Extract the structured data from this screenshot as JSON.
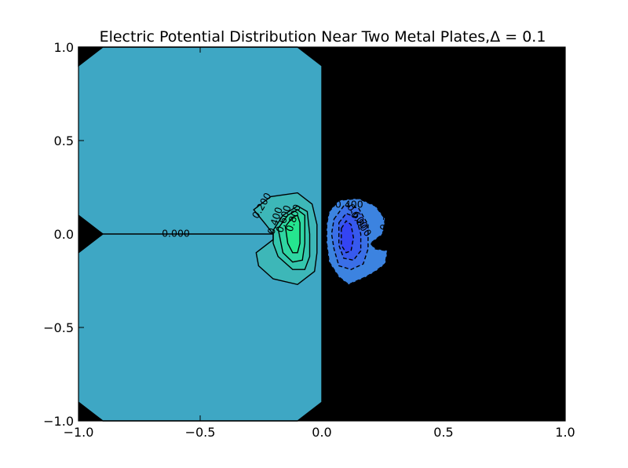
{
  "chart_data": {
    "type": "contour",
    "title": "Electric Potential Distribution Near Two Metal Plates,Δ = 0.1",
    "xlabel": "",
    "ylabel": "",
    "xlim": [
      -1.0,
      1.0
    ],
    "ylim": [
      -1.0,
      1.0
    ],
    "x_ticks": [
      -1.0,
      -0.5,
      0.0,
      0.5,
      1.0
    ],
    "x_tick_labels": [
      "−1.0",
      "−0.5",
      "0.0",
      "0.5",
      "1.0"
    ],
    "y_ticks": [
      -1.0,
      -0.5,
      0.0,
      0.5,
      1.0
    ],
    "y_tick_labels": [
      "−1.0",
      "−0.5",
      "0.0",
      "0.5",
      "1.0"
    ],
    "grid": false,
    "colors": {
      "background_region": "#4196d6",
      "left_plate_region": "#3ea7c4",
      "level_0_2": "#3db7b8",
      "level_0_4": "#34c6ad",
      "level_0_6": "#2fd6a2",
      "level_0_8": "#25e68f",
      "neg_0_2": "#3c83e0",
      "neg_0_4": "#3a6fe7",
      "neg_0_6": "#3759ee",
      "neg_0_8": "#3444f4"
    },
    "fill_regions": [
      {
        "name": "background",
        "level": "background",
        "points": [
          [
            -1,
            -1
          ],
          [
            1,
            -1
          ],
          [
            1,
            1
          ],
          [
            -1,
            1
          ]
        ]
      },
      {
        "name": "left-plate-region",
        "level": "left_plate_region",
        "points": [
          [
            -0.9,
            1.0
          ],
          [
            -0.1,
            1.0
          ],
          [
            0.0,
            0.9
          ],
          [
            0.0,
            -0.9
          ],
          [
            -0.1,
            -1.0
          ],
          [
            -0.9,
            -1.0
          ],
          [
            -1.0,
            -0.9
          ],
          [
            -1.0,
            -0.1
          ],
          [
            -0.9,
            0.0
          ],
          [
            -1.0,
            0.1
          ],
          [
            -1.0,
            0.9
          ]
        ]
      },
      {
        "name": "positive-0.2",
        "level": "level_0_2",
        "points": [
          [
            -0.28,
            0.13
          ],
          [
            -0.21,
            0.2
          ],
          [
            -0.1,
            0.22
          ],
          [
            -0.04,
            0.16
          ],
          [
            -0.02,
            0.05
          ],
          [
            -0.02,
            -0.1
          ],
          [
            -0.03,
            -0.2
          ],
          [
            -0.1,
            -0.27
          ],
          [
            -0.2,
            -0.24
          ],
          [
            -0.26,
            -0.17
          ],
          [
            -0.27,
            -0.1
          ],
          [
            -0.2,
            -0.03
          ],
          [
            -0.2,
            0.0
          ],
          [
            -0.23,
            0.05
          ]
        ]
      },
      {
        "name": "positive-0.4",
        "level": "level_0_4",
        "points": [
          [
            -0.2,
            0.02
          ],
          [
            -0.16,
            0.1
          ],
          [
            -0.1,
            0.15
          ],
          [
            -0.06,
            0.12
          ],
          [
            -0.05,
            0.0
          ],
          [
            -0.05,
            -0.12
          ],
          [
            -0.07,
            -0.19
          ],
          [
            -0.12,
            -0.19
          ],
          [
            -0.18,
            -0.12
          ],
          [
            -0.2,
            -0.05
          ]
        ]
      },
      {
        "name": "positive-0.6",
        "level": "level_0_6",
        "points": [
          [
            -0.18,
            0.03
          ],
          [
            -0.14,
            0.1
          ],
          [
            -0.1,
            0.13
          ],
          [
            -0.07,
            0.1
          ],
          [
            -0.07,
            -0.05
          ],
          [
            -0.08,
            -0.14
          ],
          [
            -0.12,
            -0.15
          ],
          [
            -0.16,
            -0.1
          ]
        ]
      },
      {
        "name": "positive-0.8",
        "level": "level_0_8",
        "points": [
          [
            -0.15,
            0.04
          ],
          [
            -0.12,
            0.09
          ],
          [
            -0.1,
            0.1
          ],
          [
            -0.09,
            0.06
          ],
          [
            -0.09,
            -0.05
          ],
          [
            -0.1,
            -0.1
          ],
          [
            -0.12,
            -0.1
          ],
          [
            -0.14,
            -0.05
          ]
        ]
      },
      {
        "name": "negative-0.2",
        "level": "neg_0_2",
        "points": [
          [
            0.03,
            0.12
          ],
          [
            0.07,
            0.18
          ],
          [
            0.15,
            0.19
          ],
          [
            0.22,
            0.15
          ],
          [
            0.26,
            0.08
          ],
          [
            0.25,
            0.0
          ],
          [
            0.2,
            -0.05
          ],
          [
            0.22,
            -0.08
          ],
          [
            0.27,
            -0.09
          ],
          [
            0.26,
            -0.16
          ],
          [
            0.22,
            -0.2
          ],
          [
            0.18,
            -0.23
          ],
          [
            0.11,
            -0.27
          ],
          [
            0.07,
            -0.23
          ],
          [
            0.03,
            -0.15
          ],
          [
            0.02,
            -0.05
          ],
          [
            0.02,
            0.05
          ]
        ]
      },
      {
        "name": "negative-0.4",
        "level": "neg_0_4",
        "points": [
          [
            0.05,
            0.08
          ],
          [
            0.09,
            0.15
          ],
          [
            0.15,
            0.14
          ],
          [
            0.19,
            0.05
          ],
          [
            0.19,
            -0.08
          ],
          [
            0.17,
            -0.16
          ],
          [
            0.12,
            -0.19
          ],
          [
            0.07,
            -0.17
          ],
          [
            0.05,
            -0.08
          ],
          [
            0.04,
            0.0
          ]
        ]
      },
      {
        "name": "negative-0.6",
        "level": "neg_0_6",
        "points": [
          [
            0.07,
            0.06
          ],
          [
            0.1,
            0.11
          ],
          [
            0.14,
            0.09
          ],
          [
            0.16,
            0.0
          ],
          [
            0.16,
            -0.09
          ],
          [
            0.13,
            -0.14
          ],
          [
            0.09,
            -0.13
          ],
          [
            0.07,
            -0.06
          ]
        ]
      },
      {
        "name": "negative-0.8",
        "level": "neg_0_8",
        "points": [
          [
            0.08,
            0.03
          ],
          [
            0.1,
            0.07
          ],
          [
            0.12,
            0.05
          ],
          [
            0.13,
            -0.02
          ],
          [
            0.12,
            -0.09
          ],
          [
            0.1,
            -0.1
          ],
          [
            0.08,
            -0.06
          ]
        ]
      }
    ],
    "contour_lines": [
      {
        "name": "zero-boundary-main",
        "dashed": false,
        "closed": false,
        "points": [
          [
            -0.9,
            1.0
          ],
          [
            -1.0,
            0.9
          ],
          [
            -1.0,
            1.0
          ],
          [
            -0.9,
            1.0
          ],
          [
            -0.1,
            1.0
          ],
          [
            0.0,
            0.9
          ],
          [
            0.0,
            -0.9
          ],
          [
            -0.1,
            -1.0
          ],
          [
            -0.9,
            -1.0
          ],
          [
            -1.0,
            -0.9
          ]
        ]
      },
      {
        "name": "zero-boundary-left-notch",
        "dashed": false,
        "closed": false,
        "points": [
          [
            -1.0,
            0.1
          ],
          [
            -0.9,
            0.0
          ],
          [
            -1.0,
            -0.1
          ]
        ]
      },
      {
        "name": "zero-line-plate",
        "dashed": false,
        "closed": false,
        "points": [
          [
            -0.9,
            0.0
          ],
          [
            -0.2,
            0.0
          ]
        ]
      },
      {
        "name": "contour-pos-0.2",
        "dashed": false,
        "closed": true,
        "level": "level_0_2"
      },
      {
        "name": "contour-pos-0.4",
        "dashed": false,
        "closed": true,
        "level": "level_0_4"
      },
      {
        "name": "contour-pos-0.6",
        "dashed": false,
        "closed": true,
        "level": "level_0_6"
      },
      {
        "name": "contour-pos-0.8",
        "dashed": false,
        "closed": true,
        "level": "level_0_8"
      },
      {
        "name": "contour-neg-0.2",
        "dashed": true,
        "closed": true,
        "level": "neg_0_2"
      },
      {
        "name": "contour-neg-0.4",
        "dashed": true,
        "closed": true,
        "level": "neg_0_4"
      },
      {
        "name": "contour-neg-0.6",
        "dashed": true,
        "closed": true,
        "level": "neg_0_6"
      },
      {
        "name": "contour-neg-0.8",
        "dashed": true,
        "closed": true,
        "level": "neg_0_8"
      }
    ],
    "contour_labels": [
      {
        "text": "0.000",
        "x": -0.6,
        "y": 0.0,
        "angle": 0
      },
      {
        "text": "0.200",
        "x": -0.245,
        "y": 0.15,
        "angle": -60
      },
      {
        "text": "0.400",
        "x": -0.19,
        "y": 0.07,
        "angle": -72
      },
      {
        "text": "0.600",
        "x": -0.155,
        "y": 0.08,
        "angle": -72
      },
      {
        "text": "0.800",
        "x": -0.115,
        "y": 0.085,
        "angle": -72
      },
      {
        "text": "-0.400",
        "x": 0.105,
        "y": 0.155,
        "angle": 0
      },
      {
        "text": "-0.600",
        "x": 0.14,
        "y": 0.1,
        "angle": 55
      },
      {
        "text": "-0.800",
        "x": 0.155,
        "y": 0.06,
        "angle": 55
      },
      {
        "text": "-0.200",
        "x": 0.27,
        "y": 0.08,
        "angle": -70
      }
    ]
  }
}
